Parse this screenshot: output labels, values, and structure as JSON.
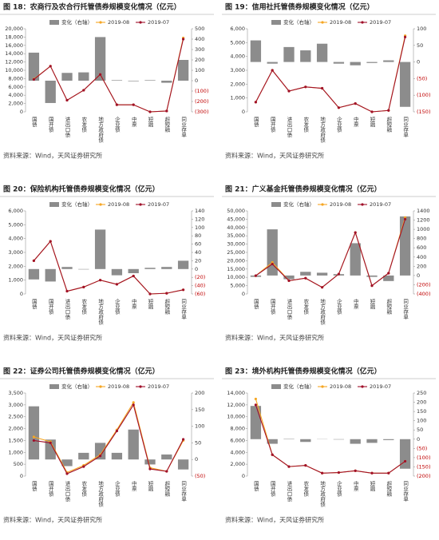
{
  "chart_data": [
    {
      "type": "combo",
      "title": "图 18：农商行及农合行托管债券规模变化情况（亿元）",
      "source": "资料来源：Wind，天风证券研究所",
      "categories": [
        "国债",
        "国开债",
        "进出口债",
        "农发债",
        "地方政府债",
        "企业债",
        "中票",
        "短融",
        "超短融",
        "同业存单"
      ],
      "series": [
        {
          "name": "变化（右轴）",
          "type": "bar",
          "axis": "y2",
          "color": "#8c8c8c",
          "values": [
            270,
            -215,
            75,
            80,
            420,
            5,
            -5,
            5,
            -20,
            200
          ]
        },
        {
          "name": "2019-08",
          "type": "line",
          "color": "#f5a623",
          "values": [
            7900,
            11000,
            2800,
            5200,
            9000,
            1700,
            1700,
            0,
            200,
            17800
          ]
        },
        {
          "name": "2019-07",
          "type": "line",
          "color": "#a0102a",
          "values": [
            7800,
            11000,
            2800,
            5200,
            9000,
            1700,
            1700,
            0,
            200,
            17500
          ]
        }
      ],
      "ylim": [
        0,
        20000
      ],
      "yticks": [
        0,
        {
          "value": 2000,
          "label": "2,000"
        },
        {
          "value": 4000,
          "label": "4,000"
        },
        {
          "value": 6000,
          "label": "6,000"
        },
        {
          "value": 8000,
          "label": "8,000"
        },
        {
          "value": 10000,
          "label": "10,000"
        },
        {
          "value": 12000,
          "label": "12,000"
        },
        {
          "value": 14000,
          "label": "14,000"
        },
        {
          "value": 16000,
          "label": "16,000"
        },
        {
          "value": 18000,
          "label": "18,000"
        },
        {
          "value": 20000,
          "label": "20,000"
        }
      ],
      "y2lim": [
        -300,
        500
      ],
      "y2ticks": [
        {
          "value": -300,
          "label": "(300)"
        },
        {
          "value": -200,
          "label": "(200)"
        },
        {
          "value": -100,
          "label": "(100)"
        },
        0,
        100,
        200,
        300,
        400,
        500
      ]
    },
    {
      "type": "combo",
      "title": "图 19：信用社托管债券规模变化情况（亿元）",
      "source": "资料来源：Wind，天风证券研究所",
      "categories": [
        "国债",
        "国开债",
        "进出口债",
        "农发债",
        "地方政府债",
        "企业债",
        "中票",
        "短融",
        "超短融",
        "同业存单"
      ],
      "series": [
        {
          "name": "变化（右轴）",
          "type": "bar",
          "axis": "y2",
          "color": "#8c8c8c",
          "values": [
            65,
            -5,
            45,
            35,
            55,
            -5,
            -10,
            -3,
            5,
            -135
          ]
        },
        {
          "name": "2019-08",
          "type": "line",
          "color": "#f5a623",
          "values": [
            700,
            3000,
            1500,
            1800,
            1700,
            300,
            600,
            0,
            100,
            5500
          ]
        },
        {
          "name": "2019-07",
          "type": "line",
          "color": "#a0102a",
          "values": [
            700,
            3000,
            1500,
            1800,
            1700,
            300,
            600,
            0,
            100,
            5400
          ]
        }
      ],
      "ylim": [
        0,
        6000
      ],
      "yticks": [
        0,
        {
          "value": 1000,
          "label": "1,000"
        },
        {
          "value": 2000,
          "label": "2,000"
        },
        {
          "value": 3000,
          "label": "3,000"
        },
        {
          "value": 4000,
          "label": "4,000"
        },
        {
          "value": 5000,
          "label": "5,000"
        },
        {
          "value": 6000,
          "label": "6,000"
        }
      ],
      "y2lim": [
        -150,
        100
      ],
      "y2ticks": [
        {
          "value": -150,
          "label": "(150)"
        },
        {
          "value": -100,
          "label": "(100)"
        },
        {
          "value": -50,
          "label": "(50)"
        },
        0,
        50,
        100
      ]
    },
    {
      "type": "combo",
      "title": "图 20：保险机构托管债券规模变化情况（亿元）",
      "source": "资料来源：Wind，天风证券研究所",
      "categories": [
        "国债",
        "国开债",
        "进出口债",
        "农发债",
        "地方政府债",
        "企业债",
        "中票",
        "短融",
        "超短融",
        "同业存单"
      ],
      "series": [
        {
          "name": "变化（右轴）",
          "type": "bar",
          "axis": "y2",
          "color": "#8c8c8c",
          "values": [
            -25,
            -30,
            5,
            -1,
            95,
            -15,
            -10,
            3,
            5,
            20
          ]
        },
        {
          "name": "2019-08",
          "type": "line",
          "color": "#f5a623",
          "values": [
            2400,
            3800,
            200,
            500,
            1000,
            700,
            1300,
            0,
            50,
            300
          ]
        },
        {
          "name": "2019-07",
          "type": "line",
          "color": "#a0102a",
          "values": [
            2400,
            3800,
            200,
            500,
            1000,
            700,
            1300,
            0,
            50,
            300
          ]
        }
      ],
      "ylim": [
        0,
        6000
      ],
      "yticks": [
        0,
        {
          "value": 1000,
          "label": "1,000"
        },
        {
          "value": 2000,
          "label": "2,000"
        },
        {
          "value": 3000,
          "label": "3,000"
        },
        {
          "value": 4000,
          "label": "4,000"
        },
        {
          "value": 5000,
          "label": "5,000"
        },
        {
          "value": 6000,
          "label": "6,000"
        }
      ],
      "y2lim": [
        -60,
        140
      ],
      "y2ticks": [
        {
          "value": -60,
          "label": "(60)"
        },
        {
          "value": -40,
          "label": "(40)"
        },
        {
          "value": -20,
          "label": "(20)"
        },
        0,
        20,
        40,
        60,
        80,
        100,
        120,
        140
      ]
    },
    {
      "type": "combo",
      "title": "图 21：广义基金托管债券规模变化情况（亿元）",
      "source": "资料来源：Wind，天风证券研究所",
      "categories": [
        "国债",
        "国开债",
        "进出口债",
        "农发债",
        "地方政府债",
        "企业债",
        "中票",
        "短融",
        "超短融",
        "同业存单"
      ],
      "series": [
        {
          "name": "变化（右轴）",
          "type": "bar",
          "axis": "y2",
          "color": "#8c8c8c",
          "values": [
            -30,
            1000,
            -80,
            80,
            60,
            30,
            700,
            -30,
            -120,
            1280
          ]
        },
        {
          "name": "2019-08",
          "type": "line",
          "color": "#f5a623",
          "values": [
            11000,
            19000,
            8000,
            9500,
            4000,
            12000,
            37000,
            5000,
            12500,
            46000
          ]
        },
        {
          "name": "2019-07",
          "type": "line",
          "color": "#a0102a",
          "values": [
            11000,
            18000,
            8000,
            9500,
            4000,
            12000,
            37000,
            5000,
            12500,
            45000
          ]
        }
      ],
      "ylim": [
        0,
        50000
      ],
      "yticks": [
        0,
        {
          "value": 5000,
          "label": "5,000"
        },
        {
          "value": 10000,
          "label": "10,000"
        },
        {
          "value": 15000,
          "label": "15,000"
        },
        {
          "value": 20000,
          "label": "20,000"
        },
        {
          "value": 25000,
          "label": "25,000"
        },
        {
          "value": 30000,
          "label": "30,000"
        },
        {
          "value": 35000,
          "label": "35,000"
        },
        {
          "value": 40000,
          "label": "40,000"
        },
        {
          "value": 45000,
          "label": "45,000"
        },
        {
          "value": 50000,
          "label": "50,000"
        }
      ],
      "y2lim": [
        -400,
        1400
      ],
      "y2ticks": [
        {
          "value": -400,
          "label": "(400)"
        },
        {
          "value": -200,
          "label": "(200)"
        },
        0,
        200,
        400,
        600,
        800,
        1000,
        1200,
        1400
      ]
    },
    {
      "type": "combo",
      "title": "图 22：证券公司托管债券规模变化情况（亿元）",
      "source": "资料来源：Wind，天风证券研究所",
      "categories": [
        "国债",
        "国开债",
        "进出口债",
        "农发债",
        "地方政府债",
        "企业债",
        "中票",
        "短融",
        "超短融",
        "同业存单"
      ],
      "series": [
        {
          "name": "变化（右轴）",
          "type": "bar",
          "axis": "y2",
          "color": "#8c8c8c",
          "values": [
            160,
            60,
            -20,
            20,
            50,
            20,
            90,
            -15,
            15,
            -30
          ]
        },
        {
          "name": "2019-08",
          "type": "line",
          "color": "#f5a623",
          "values": [
            1650,
            1450,
            150,
            450,
            900,
            1950,
            3100,
            350,
            200,
            1500
          ]
        },
        {
          "name": "2019-07",
          "type": "line",
          "color": "#a0102a",
          "values": [
            1500,
            1400,
            100,
            400,
            850,
            1900,
            3000,
            300,
            200,
            1550
          ]
        }
      ],
      "ylim": [
        0,
        3500
      ],
      "yticks": [
        0,
        500,
        {
          "value": 1000,
          "label": "1,000"
        },
        {
          "value": 1500,
          "label": "1,500"
        },
        {
          "value": 2000,
          "label": "2,000"
        },
        {
          "value": 2500,
          "label": "2,500"
        },
        {
          "value": 3000,
          "label": "3,000"
        },
        {
          "value": 3500,
          "label": "3,500"
        }
      ],
      "y2lim": [
        -50,
        200
      ],
      "y2ticks": [
        {
          "value": -50,
          "label": "(50)"
        },
        0,
        50,
        100,
        150,
        200
      ]
    },
    {
      "type": "combo",
      "title": "图 23：境外机构托管债券规模变化情况（亿元）",
      "source": "资料来源：Wind，天风证券研究所",
      "categories": [
        "国债",
        "国开债",
        "进出口债",
        "农发债",
        "地方政府债",
        "企业债",
        "中票",
        "短融",
        "超短融",
        "同业存单"
      ],
      "series": [
        {
          "name": "变化（右轴）",
          "type": "bar",
          "axis": "y2",
          "color": "#8c8c8c",
          "values": [
            180,
            -25,
            2,
            -15,
            1,
            -2,
            -25,
            -20,
            -5,
            -160
          ]
        },
        {
          "name": "2019-08",
          "type": "line",
          "color": "#f5a623",
          "values": [
            13000,
            3600,
            1600,
            1800,
            500,
            600,
            900,
            500,
            500,
            2500
          ]
        },
        {
          "name": "2019-07",
          "type": "line",
          "color": "#a0102a",
          "values": [
            12000,
            3600,
            1600,
            1800,
            500,
            600,
            900,
            500,
            500,
            2500
          ]
        }
      ],
      "ylim": [
        0,
        14000
      ],
      "yticks": [
        0,
        {
          "value": 2000,
          "label": "2,000"
        },
        {
          "value": 4000,
          "label": "4,000"
        },
        {
          "value": 6000,
          "label": "6,000"
        },
        {
          "value": 8000,
          "label": "8,000"
        },
        {
          "value": 10000,
          "label": "10,000"
        },
        {
          "value": 12000,
          "label": "12,000"
        },
        {
          "value": 14000,
          "label": "14,000"
        }
      ],
      "y2lim": [
        -200,
        250
      ],
      "y2ticks": [
        {
          "value": -200,
          "label": "(200)"
        },
        {
          "value": -150,
          "label": "(150)"
        },
        {
          "value": -100,
          "label": "(100)"
        },
        {
          "value": -50,
          "label": "(50)"
        },
        0,
        50,
        100,
        150,
        200,
        250
      ]
    }
  ]
}
